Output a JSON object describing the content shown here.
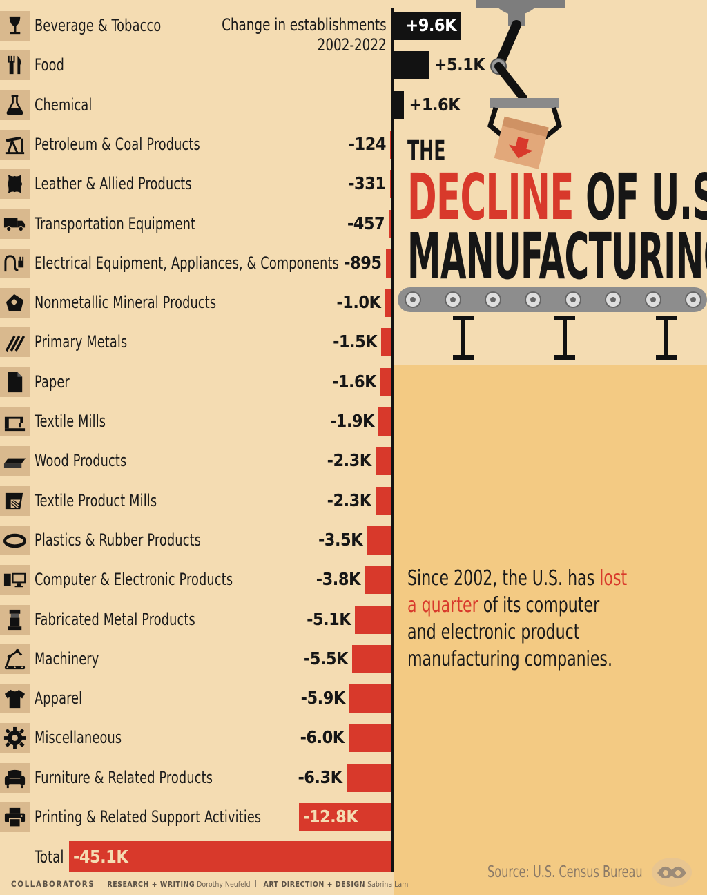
{
  "chart_data": {
    "type": "bar",
    "orientation": "horizontal",
    "legend_title": [
      "Change in establishments",
      "2002-2022"
    ],
    "categories": [
      "Beverage & Tobacco",
      "Food",
      "Chemical",
      "Petroleum & Coal Products",
      "Leather & Allied Products",
      "Transportation Equipment",
      "Electrical Equipment, Appliances, & Components",
      "Nonmetallic Mineral Products",
      "Primary Metals",
      "Paper",
      "Textile Mills",
      "Wood Products",
      "Textile Product Mills",
      "Plastics & Rubber Products",
      "Computer & Electronic Products",
      "Fabricated Metal Products",
      "Machinery",
      "Apparel",
      "Miscellaneous",
      "Furniture & Related Products",
      "Printing & Related Support Activities"
    ],
    "values": [
      9600,
      5100,
      1600,
      -124,
      -331,
      -457,
      -895,
      -1000,
      -1500,
      -1600,
      -1900,
      -2300,
      -2300,
      -3500,
      -3800,
      -5100,
      -5500,
      -5900,
      -6000,
      -6300,
      -12800
    ],
    "value_labels": [
      "+9.6K",
      "+5.1K",
      "+1.6K",
      "-124",
      "-331",
      "-457",
      "-895",
      "-1.0K",
      "-1.5K",
      "-1.6K",
      "-1.9K",
      "-2.3K",
      "-2.3K",
      "-3.5K",
      "-3.8K",
      "-5.1K",
      "-5.5K",
      "-5.9K",
      "-6.0K",
      "-6.3K",
      "-12.8K"
    ],
    "icons": [
      "wine-glass-icon",
      "fork-knife-icon",
      "flask-icon",
      "oil-pump-icon",
      "leather-hide-icon",
      "truck-icon",
      "plug-icon",
      "mineral-icon",
      "metal-bars-icon",
      "paper-icon",
      "sewing-machine-icon",
      "wood-plank-icon",
      "textile-icon",
      "rubber-ring-icon",
      "computer-icon",
      "metal-part-icon",
      "machinery-icon",
      "shirt-icon",
      "gear-icon",
      "armchair-icon",
      "printer-icon"
    ],
    "total": {
      "label": "Total",
      "value": -45100,
      "value_label": "-45.1K"
    },
    "colors": {
      "positive": "#121212",
      "negative": "#d8392b",
      "background": "#f4dcb2",
      "panel": "#f3ca83"
    }
  },
  "title": {
    "the": "THE",
    "decline": "DECLINE",
    "of_us": "OF U.S.",
    "manufacturing": "MANUFACTURING"
  },
  "note": {
    "line1_a": "Since 2002, the U.S. has ",
    "line1_b": "lost",
    "line2_a": "a quarter",
    "line2_b": " of its computer",
    "line3": "and electronic product",
    "line4": "manufacturing companies."
  },
  "source": "Source: U.S. Census Bureau",
  "credits": {
    "collaborators": "COLLABORATORS",
    "research_label": "RESEARCH + WRITING",
    "research_name": "Dorothy Neufeld",
    "design_label": "ART DIRECTION + DESIGN",
    "design_name": "Sabrina Lam"
  }
}
